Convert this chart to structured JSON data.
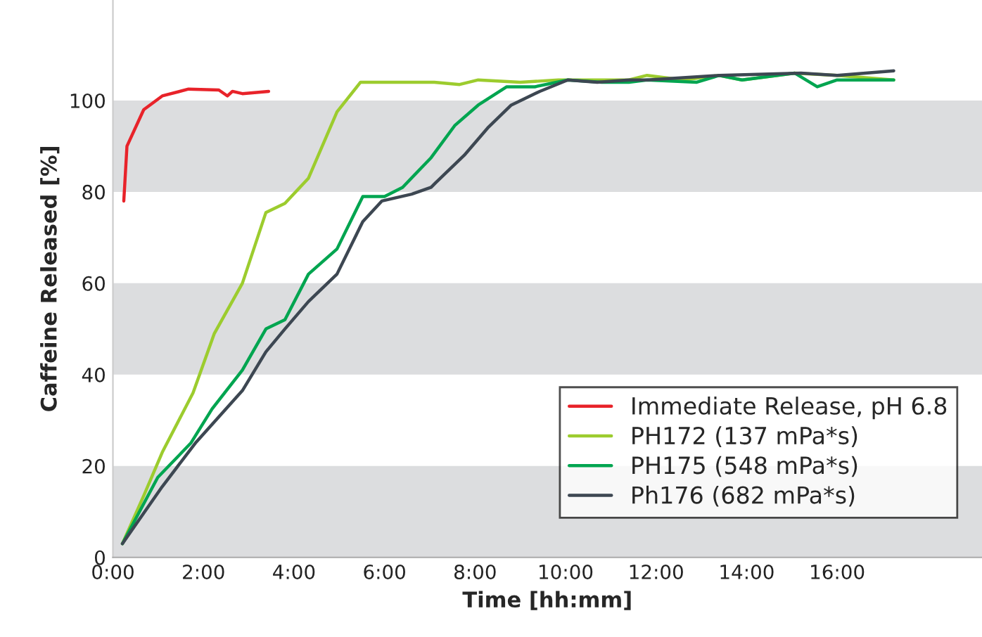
{
  "chart_data": {
    "type": "line",
    "xlabel": "Time [hh:mm]",
    "ylabel": "Caffeine Released [%]",
    "xlim": [
      0,
      19.2
    ],
    "ylim": [
      0,
      122
    ],
    "xticks": [
      {
        "value": 0,
        "label": "0:00"
      },
      {
        "value": 2,
        "label": "2:00"
      },
      {
        "value": 4,
        "label": "4:00"
      },
      {
        "value": 6,
        "label": "6:00"
      },
      {
        "value": 8,
        "label": "8:00"
      },
      {
        "value": 10,
        "label": "10:00"
      },
      {
        "value": 12,
        "label": "12:00"
      },
      {
        "value": 14,
        "label": "14:00"
      },
      {
        "value": 16,
        "label": "16:00"
      }
    ],
    "yticks": [
      0,
      20,
      40,
      60,
      80,
      100
    ],
    "bands": [
      {
        "axis": "y",
        "from": 0,
        "to": 20,
        "color": "#dcdddf"
      },
      {
        "axis": "y",
        "from": 40,
        "to": 60,
        "color": "#dcdddf"
      },
      {
        "axis": "y",
        "from": 80,
        "to": 100,
        "color": "#dcdddf"
      }
    ],
    "grid": false,
    "legend": "bottom right",
    "line_style": "solid",
    "series": [
      {
        "name": "Immediate Release, pH 6.8",
        "color": "#e8232a",
        "x": [
          0.24,
          0.31,
          0.68,
          1.09,
          1.67,
          2.34,
          2.53,
          2.64,
          2.86,
          3.44
        ],
        "values": [
          78,
          90,
          98,
          101,
          102.5,
          102.3,
          101,
          102,
          101.5,
          102
        ]
      },
      {
        "name": "PH172 (137 mPa*s)",
        "color": "#9ccc2e",
        "x": [
          0.21,
          0.68,
          1.09,
          1.77,
          2.24,
          2.86,
          3.38,
          3.8,
          4.32,
          4.95,
          5.47,
          6.1,
          7.1,
          7.66,
          8.07,
          9,
          9.84,
          11.4,
          11.8,
          12.6,
          13.4,
          13.9,
          15.06,
          16,
          17.25
        ],
        "values": [
          3,
          13.5,
          23,
          36,
          49,
          60,
          75.5,
          77.5,
          83,
          97.5,
          104,
          104,
          104,
          103.5,
          104.5,
          104,
          104.5,
          104.5,
          105.5,
          104.5,
          105.5,
          104.5,
          106,
          105.5,
          104.5
        ]
      },
      {
        "name": "PH175 (548 mPa*s)",
        "color": "#00a550",
        "x": [
          0.21,
          0.99,
          1.72,
          2.19,
          2.86,
          3.38,
          3.8,
          4.32,
          4.95,
          5.52,
          6,
          6.4,
          7.03,
          7.55,
          8.07,
          8.7,
          9.32,
          10.05,
          10.8,
          11.4,
          11.8,
          12.9,
          13.4,
          13.9,
          15.06,
          15.56,
          16,
          17.25
        ],
        "values": [
          3,
          17.5,
          25,
          32.5,
          41,
          50,
          52,
          62,
          67.5,
          79,
          79,
          81,
          87.5,
          94.5,
          99,
          103,
          103,
          104.5,
          104,
          104,
          104.5,
          104,
          105.5,
          104.5,
          106,
          103,
          104.5,
          104.5
        ]
      },
      {
        "name": "Ph176 (682 mPa*s)",
        "color": "#3d4752",
        "x": [
          0.21,
          1.09,
          1.82,
          2.86,
          3.38,
          3.8,
          4.32,
          4.95,
          5.52,
          5.94,
          6.6,
          7.03,
          7.13,
          7.76,
          8.28,
          8.8,
          9.43,
          10.05,
          10.7,
          11.4,
          11.8,
          13.4,
          15.2,
          16,
          17.25
        ],
        "values": [
          3,
          15.5,
          25,
          36.5,
          45,
          50,
          56,
          62,
          73.5,
          78,
          79.5,
          81,
          82,
          88,
          94,
          99,
          102,
          104.5,
          104,
          104.5,
          104.5,
          105.5,
          106,
          105.5,
          106.5
        ]
      }
    ]
  }
}
